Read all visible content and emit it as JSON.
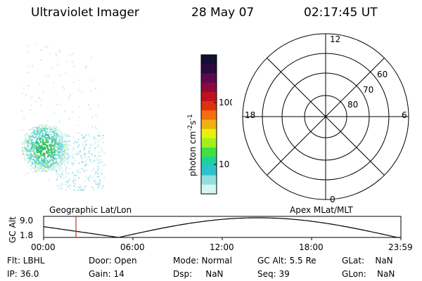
{
  "header": {
    "title": "Ultraviolet Imager",
    "date": "28 May 07",
    "time": "02:17:45 UT"
  },
  "colorbar": {
    "unit_label": "photon cm",
    "unit_sup1": "-2",
    "unit_mid": "s",
    "unit_sup2": "-1",
    "tick_100": "100",
    "tick_10": "10",
    "colors": [
      "#101030",
      "#2a0a3a",
      "#5a0a50",
      "#8a0a40",
      "#c01020",
      "#e03010",
      "#f07010",
      "#f0b010",
      "#e8f010",
      "#a0f020",
      "#40e040",
      "#20d0a0",
      "#30c0d0",
      "#90e0e0",
      "#d8f4f0"
    ]
  },
  "polar": {
    "mlt_12": "12",
    "mlt_18": "18",
    "mlt_6": "6",
    "mlt_0": "0",
    "lat_60": "60",
    "lat_70": "70",
    "lat_80": "80"
  },
  "timeline": {
    "ylabel": "GC Alt",
    "y_max": "9.0",
    "y_min": "1.8",
    "left_title": "Geographic Lat/Lon",
    "right_title": "Apex MLat/MLT",
    "x_ticks": [
      "00:00",
      "06:00",
      "12:00",
      "18:00",
      "23:59"
    ],
    "marker_color": "#c03020"
  },
  "footer": {
    "flt": "Flt: LBHL",
    "ip": "IP: 36.0",
    "door": "Door: Open",
    "gain": "Gain: 14",
    "mode": "Mode: Normal",
    "dsp": "Dsp:     NaN",
    "gcalt": "GC Alt: 5.5 Re",
    "seq": "Seq: 39",
    "glat": "GLat:    NaN",
    "glon": "GLon:    NaN"
  }
}
